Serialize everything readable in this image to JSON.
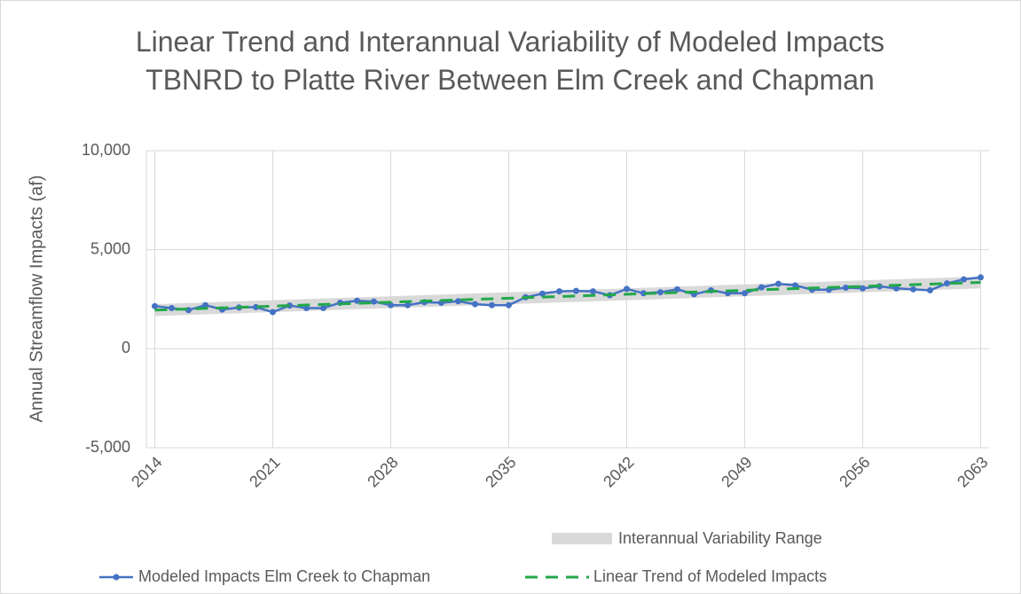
{
  "chart_data": {
    "type": "line",
    "title": "Linear Trend and Interannual Variability of Modeled Impacts TBNRD to Platte River Between Elm Creek and Chapman",
    "y_label": "Annual Streamflow Impacts (af)",
    "x": [
      2014,
      2015,
      2016,
      2017,
      2018,
      2019,
      2020,
      2021,
      2022,
      2023,
      2024,
      2025,
      2026,
      2027,
      2028,
      2029,
      2030,
      2031,
      2032,
      2033,
      2034,
      2035,
      2036,
      2037,
      2038,
      2039,
      2040,
      2041,
      2042,
      2043,
      2044,
      2045,
      2046,
      2047,
      2048,
      2049,
      2050,
      2051,
      2052,
      2053,
      2054,
      2055,
      2056,
      2057,
      2058,
      2059,
      2060,
      2061,
      2062,
      2063
    ],
    "series": [
      {
        "name": "Modeled Impacts Elm Creek to Chapman",
        "color": "#4472c4",
        "values": [
          2150,
          2050,
          1950,
          2200,
          1980,
          2080,
          2100,
          1850,
          2180,
          2050,
          2050,
          2320,
          2420,
          2380,
          2200,
          2200,
          2350,
          2320,
          2400,
          2250,
          2200,
          2200,
          2600,
          2780,
          2900,
          2920,
          2900,
          2700,
          3020,
          2800,
          2850,
          3000,
          2750,
          2950,
          2800,
          2800,
          3100,
          3280,
          3200,
          2980,
          2980,
          3080,
          3050,
          3150,
          3050,
          3000,
          2950,
          3300,
          3500,
          3600
        ]
      },
      {
        "name": "Linear Trend of Modeled Impacts",
        "color": "#22a84a",
        "x": [
          2014,
          2063
        ],
        "values": [
          1950,
          3350
        ]
      }
    ],
    "band": {
      "name": "Interannual Variability Range",
      "color": "#d9d9d9",
      "x": [
        2014,
        2063
      ],
      "lower": [
        1650,
        3050
      ],
      "upper": [
        2250,
        3650
      ]
    },
    "xlim": [
      2013.5,
      2063.5
    ],
    "xticks": [
      2014,
      2021,
      2028,
      2035,
      2042,
      2049,
      2056,
      2063
    ],
    "ylim": [
      -5000,
      10000
    ],
    "yticks": [
      {
        "value": -5000,
        "label": "-5,000"
      },
      0,
      {
        "value": 5000,
        "label": "5,000"
      },
      {
        "value": 10000,
        "label": "10,000"
      }
    ],
    "grid": true
  }
}
